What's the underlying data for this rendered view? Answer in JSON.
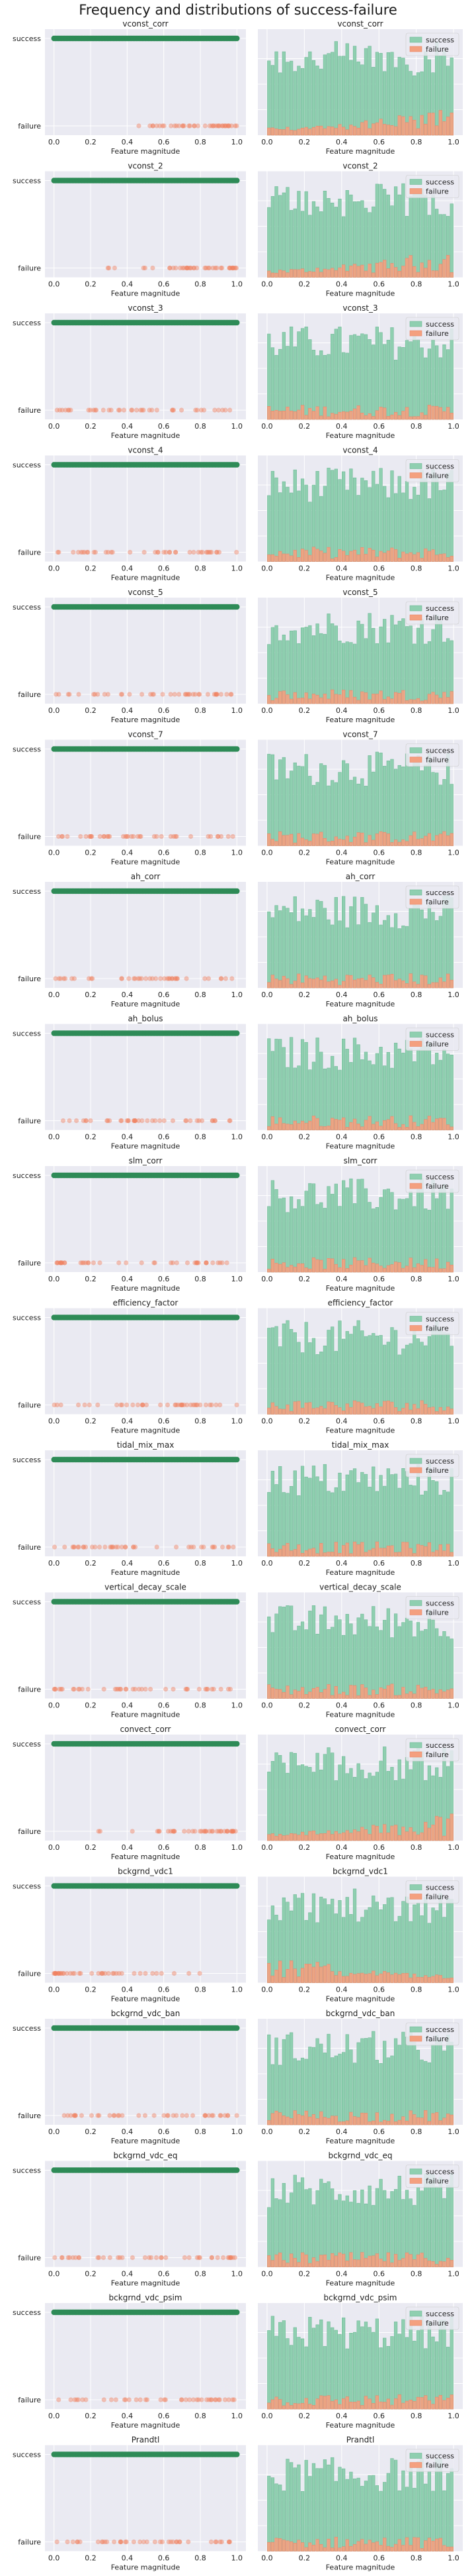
{
  "figure": {
    "title": "Frequency and distributions of success-failure"
  },
  "colors": {
    "background": "#eaeaf2",
    "grid": "#ffffff",
    "success": "#2e8b57",
    "success_hist": "#8fcfb0",
    "failure": "#f08060",
    "failure_hist": "#f4a07f"
  },
  "chart_data": [
    {
      "type": "scatter",
      "title": "vconst_corr",
      "xlabel": "Feature magnitude",
      "yticks": [
        "success",
        "failure"
      ],
      "x_ticks": [
        "0.0",
        "0.2",
        "0.4",
        "0.6",
        "0.8",
        "1.0"
      ],
      "failure_trend": "increasing"
    },
    {
      "type": "bar",
      "title": "vconst_corr",
      "xlabel": "Feature magnitude",
      "legend": [
        "success",
        "failure"
      ],
      "x_ticks": [
        "0.0",
        "0.2",
        "0.4",
        "0.6",
        "0.8",
        "1.0"
      ]
    },
    {
      "type": "scatter",
      "title": "vconst_2",
      "xlabel": "Feature magnitude",
      "yticks": [
        "success",
        "failure"
      ],
      "x_ticks": [
        "0.0",
        "0.2",
        "0.4",
        "0.6",
        "0.8",
        "1.0"
      ],
      "failure_trend": "increasing"
    },
    {
      "type": "bar",
      "title": "vconst_2",
      "xlabel": "Feature magnitude",
      "legend": [
        "success",
        "failure"
      ],
      "x_ticks": [
        "0.0",
        "0.2",
        "0.4",
        "0.6",
        "0.8",
        "1.0"
      ]
    },
    {
      "type": "scatter",
      "title": "vconst_3",
      "xlabel": "Feature magnitude",
      "yticks": [
        "success",
        "failure"
      ],
      "x_ticks": [
        "0.0",
        "0.2",
        "0.4",
        "0.6",
        "0.8",
        "1.0"
      ],
      "failure_trend": "uniform"
    },
    {
      "type": "bar",
      "title": "vconst_3",
      "xlabel": "Feature magnitude",
      "legend": [
        "success",
        "failure"
      ],
      "x_ticks": [
        "0.0",
        "0.2",
        "0.4",
        "0.6",
        "0.8",
        "1.0"
      ]
    },
    {
      "type": "scatter",
      "title": "vconst_4",
      "xlabel": "Feature magnitude",
      "yticks": [
        "success",
        "failure"
      ],
      "x_ticks": [
        "0.0",
        "0.2",
        "0.4",
        "0.6",
        "0.8",
        "1.0"
      ],
      "failure_trend": "uniform"
    },
    {
      "type": "bar",
      "title": "vconst_4",
      "xlabel": "Feature magnitude",
      "legend": [
        "success",
        "failure"
      ],
      "x_ticks": [
        "0.0",
        "0.2",
        "0.4",
        "0.6",
        "0.8",
        "1.0"
      ]
    },
    {
      "type": "scatter",
      "title": "vconst_5",
      "xlabel": "Feature magnitude",
      "yticks": [
        "success",
        "failure"
      ],
      "x_ticks": [
        "0.0",
        "0.2",
        "0.4",
        "0.6",
        "0.8",
        "1.0"
      ],
      "failure_trend": "uniform"
    },
    {
      "type": "bar",
      "title": "vconst_5",
      "xlabel": "Feature magnitude",
      "legend": [
        "success",
        "failure"
      ],
      "x_ticks": [
        "0.0",
        "0.2",
        "0.4",
        "0.6",
        "0.8",
        "1.0"
      ]
    },
    {
      "type": "scatter",
      "title": "vconst_7",
      "xlabel": "Feature magnitude",
      "yticks": [
        "success",
        "failure"
      ],
      "x_ticks": [
        "0.0",
        "0.2",
        "0.4",
        "0.6",
        "0.8",
        "1.0"
      ],
      "failure_trend": "uniform"
    },
    {
      "type": "bar",
      "title": "vconst_7",
      "xlabel": "Feature magnitude",
      "legend": [
        "success",
        "failure"
      ],
      "x_ticks": [
        "0.0",
        "0.2",
        "0.4",
        "0.6",
        "0.8",
        "1.0"
      ]
    },
    {
      "type": "scatter",
      "title": "ah_corr",
      "xlabel": "Feature magnitude",
      "yticks": [
        "success",
        "failure"
      ],
      "x_ticks": [
        "0.0",
        "0.2",
        "0.4",
        "0.6",
        "0.8",
        "1.0"
      ],
      "failure_trend": "uniform"
    },
    {
      "type": "bar",
      "title": "ah_corr",
      "xlabel": "Feature magnitude",
      "legend": [
        "success",
        "failure"
      ],
      "x_ticks": [
        "0.0",
        "0.2",
        "0.4",
        "0.6",
        "0.8",
        "1.0"
      ]
    },
    {
      "type": "scatter",
      "title": "ah_bolus",
      "xlabel": "Feature magnitude",
      "yticks": [
        "success",
        "failure"
      ],
      "x_ticks": [
        "0.0",
        "0.2",
        "0.4",
        "0.6",
        "0.8",
        "1.0"
      ],
      "failure_trend": "uniform"
    },
    {
      "type": "bar",
      "title": "ah_bolus",
      "xlabel": "Feature magnitude",
      "legend": [
        "success",
        "failure"
      ],
      "x_ticks": [
        "0.0",
        "0.2",
        "0.4",
        "0.6",
        "0.8",
        "1.0"
      ]
    },
    {
      "type": "scatter",
      "title": "slm_corr",
      "xlabel": "Feature magnitude",
      "yticks": [
        "success",
        "failure"
      ],
      "x_ticks": [
        "0.0",
        "0.2",
        "0.4",
        "0.6",
        "0.8",
        "1.0"
      ],
      "failure_trend": "uniform"
    },
    {
      "type": "bar",
      "title": "slm_corr",
      "xlabel": "Feature magnitude",
      "legend": [
        "success",
        "failure"
      ],
      "x_ticks": [
        "0.0",
        "0.2",
        "0.4",
        "0.6",
        "0.8",
        "1.0"
      ]
    },
    {
      "type": "scatter",
      "title": "efficiency_factor",
      "xlabel": "Feature magnitude",
      "yticks": [
        "success",
        "failure"
      ],
      "x_ticks": [
        "0.0",
        "0.2",
        "0.4",
        "0.6",
        "0.8",
        "1.0"
      ],
      "failure_trend": "uniform"
    },
    {
      "type": "bar",
      "title": "efficiency_factor",
      "xlabel": "Feature magnitude",
      "legend": [
        "success",
        "failure"
      ],
      "x_ticks": [
        "0.0",
        "0.2",
        "0.4",
        "0.6",
        "0.8",
        "1.0"
      ]
    },
    {
      "type": "scatter",
      "title": "tidal_mix_max",
      "xlabel": "Feature magnitude",
      "yticks": [
        "success",
        "failure"
      ],
      "x_ticks": [
        "0.0",
        "0.2",
        "0.4",
        "0.6",
        "0.8",
        "1.0"
      ],
      "failure_trend": "uniform"
    },
    {
      "type": "bar",
      "title": "tidal_mix_max",
      "xlabel": "Feature magnitude",
      "legend": [
        "success",
        "failure"
      ],
      "x_ticks": [
        "0.0",
        "0.2",
        "0.4",
        "0.6",
        "0.8",
        "1.0"
      ]
    },
    {
      "type": "scatter",
      "title": "vertical_decay_scale",
      "xlabel": "Feature magnitude",
      "yticks": [
        "success",
        "failure"
      ],
      "x_ticks": [
        "0.0",
        "0.2",
        "0.4",
        "0.6",
        "0.8",
        "1.0"
      ],
      "failure_trend": "uniform"
    },
    {
      "type": "bar",
      "title": "vertical_decay_scale",
      "xlabel": "Feature magnitude",
      "legend": [
        "success",
        "failure"
      ],
      "x_ticks": [
        "0.0",
        "0.2",
        "0.4",
        "0.6",
        "0.8",
        "1.0"
      ]
    },
    {
      "type": "scatter",
      "title": "convect_corr",
      "xlabel": "Feature magnitude",
      "yticks": [
        "success",
        "failure"
      ],
      "x_ticks": [
        "0.0",
        "0.2",
        "0.4",
        "0.6",
        "0.8",
        "1.0"
      ],
      "failure_trend": "increasing"
    },
    {
      "type": "bar",
      "title": "convect_corr",
      "xlabel": "Feature magnitude",
      "legend": [
        "success",
        "failure"
      ],
      "x_ticks": [
        "0.0",
        "0.2",
        "0.4",
        "0.6",
        "0.8",
        "1.0"
      ]
    },
    {
      "type": "scatter",
      "title": "bckgrnd_vdc1",
      "xlabel": "Feature magnitude",
      "yticks": [
        "success",
        "failure"
      ],
      "x_ticks": [
        "0.0",
        "0.2",
        "0.4",
        "0.6",
        "0.8",
        "1.0"
      ],
      "failure_trend": "decreasing"
    },
    {
      "type": "bar",
      "title": "bckgrnd_vdc1",
      "xlabel": "Feature magnitude",
      "legend": [
        "success",
        "failure"
      ],
      "x_ticks": [
        "0.0",
        "0.2",
        "0.4",
        "0.6",
        "0.8",
        "1.0"
      ]
    },
    {
      "type": "scatter",
      "title": "bckgrnd_vdc_ban",
      "xlabel": "Feature magnitude",
      "yticks": [
        "success",
        "failure"
      ],
      "x_ticks": [
        "0.0",
        "0.2",
        "0.4",
        "0.6",
        "0.8",
        "1.0"
      ],
      "failure_trend": "uniform"
    },
    {
      "type": "bar",
      "title": "bckgrnd_vdc_ban",
      "xlabel": "Feature magnitude",
      "legend": [
        "success",
        "failure"
      ],
      "x_ticks": [
        "0.0",
        "0.2",
        "0.4",
        "0.6",
        "0.8",
        "1.0"
      ]
    },
    {
      "type": "scatter",
      "title": "bckgrnd_vdc_eq",
      "xlabel": "Feature magnitude",
      "yticks": [
        "success",
        "failure"
      ],
      "x_ticks": [
        "0.0",
        "0.2",
        "0.4",
        "0.6",
        "0.8",
        "1.0"
      ],
      "failure_trend": "uniform"
    },
    {
      "type": "bar",
      "title": "bckgrnd_vdc_eq",
      "xlabel": "Feature magnitude",
      "legend": [
        "success",
        "failure"
      ],
      "x_ticks": [
        "0.0",
        "0.2",
        "0.4",
        "0.6",
        "0.8",
        "1.0"
      ]
    },
    {
      "type": "scatter",
      "title": "bckgrnd_vdc_psim",
      "xlabel": "Feature magnitude",
      "yticks": [
        "success",
        "failure"
      ],
      "x_ticks": [
        "0.0",
        "0.2",
        "0.4",
        "0.6",
        "0.8",
        "1.0"
      ],
      "failure_trend": "uniform"
    },
    {
      "type": "bar",
      "title": "bckgrnd_vdc_psim",
      "xlabel": "Feature magnitude",
      "legend": [
        "success",
        "failure"
      ],
      "x_ticks": [
        "0.0",
        "0.2",
        "0.4",
        "0.6",
        "0.8",
        "1.0"
      ]
    },
    {
      "type": "scatter",
      "title": "Prandtl",
      "xlabel": "Feature magnitude",
      "yticks": [
        "success",
        "failure"
      ],
      "x_ticks": [
        "0.0",
        "0.2",
        "0.4",
        "0.6",
        "0.8",
        "1.0"
      ],
      "failure_trend": "uniform"
    },
    {
      "type": "bar",
      "title": "Prandtl",
      "xlabel": "Feature magnitude",
      "legend": [
        "success",
        "failure"
      ],
      "x_ticks": [
        "0.0",
        "0.2",
        "0.4",
        "0.6",
        "0.8",
        "1.0"
      ]
    }
  ]
}
